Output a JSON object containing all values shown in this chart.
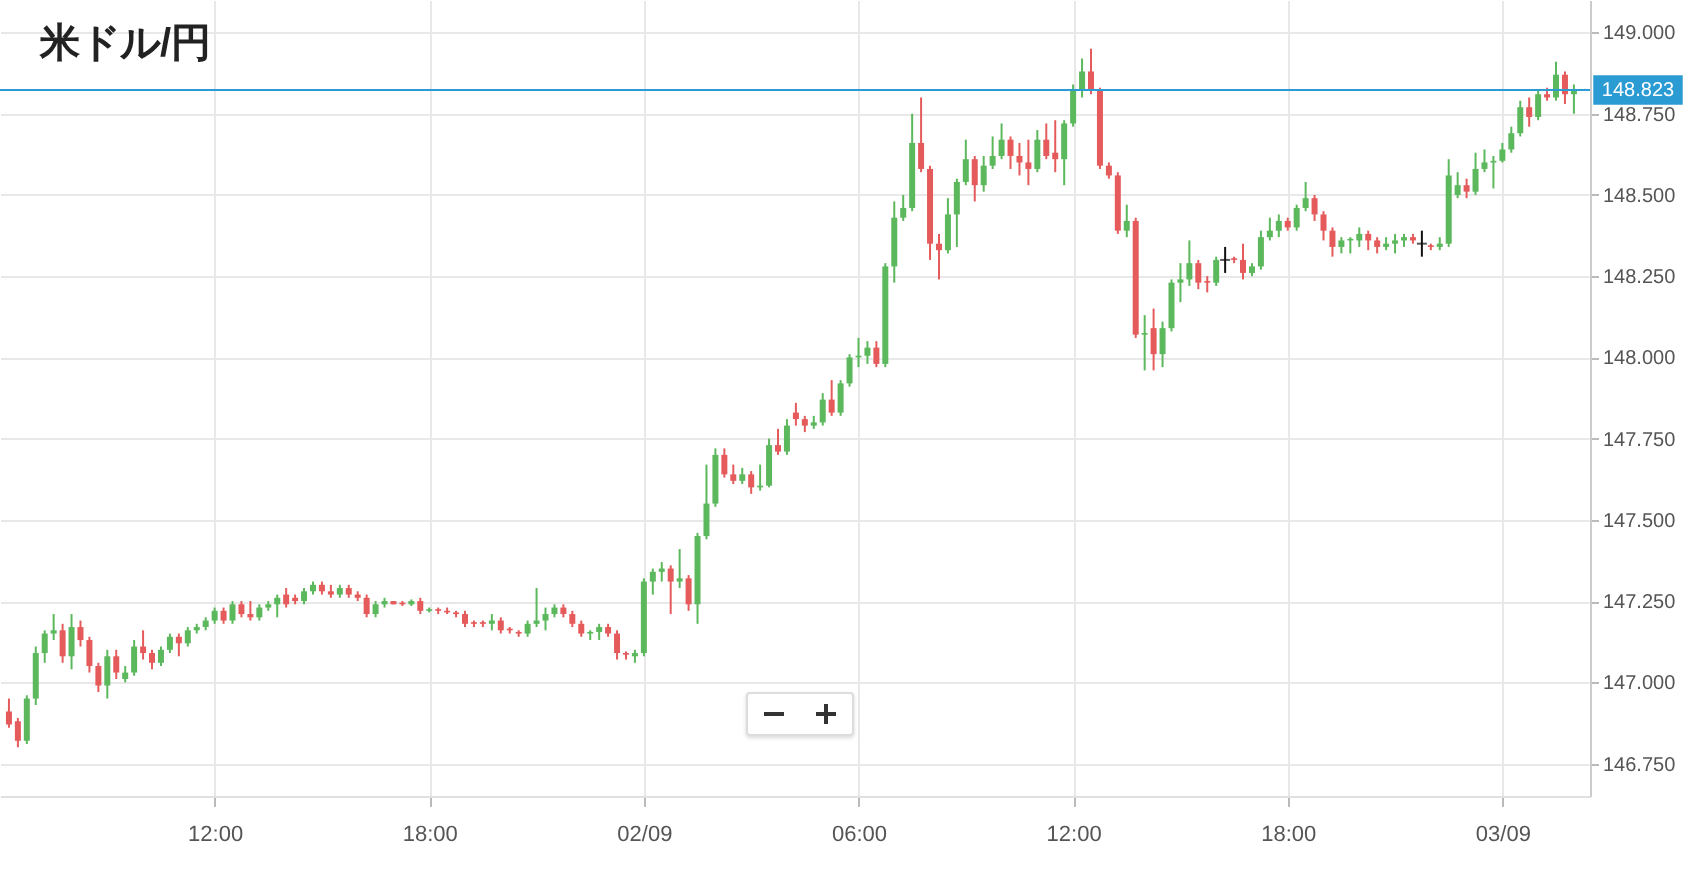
{
  "chart_data": {
    "type": "candlestick",
    "title": "米ドル/円",
    "x": [
      "--09-01T06:15",
      "--09-01T06:30",
      "--09-01T06:45",
      "--09-01T07:00",
      "--09-01T07:15",
      "--09-01T07:30",
      "--09-01T07:45",
      "--09-01T08:00",
      "--09-01T08:15",
      "--09-01T08:30",
      "--09-01T08:45",
      "--09-01T09:00",
      "--09-01T09:15",
      "--09-01T09:30",
      "--09-01T09:45",
      "--09-01T10:00",
      "--09-01T10:15",
      "--09-01T10:30",
      "--09-01T10:45",
      "--09-01T11:00",
      "--09-01T11:15",
      "--09-01T11:30",
      "--09-01T11:45",
      "--09-01T12:00",
      "--09-01T12:15",
      "--09-01T12:30",
      "--09-01T12:45",
      "--09-01T13:00",
      "--09-01T13:15",
      "--09-01T13:30",
      "--09-01T13:45",
      "--09-01T14:00",
      "--09-01T14:15",
      "--09-01T14:30",
      "--09-01T14:45",
      "--09-01T15:00",
      "--09-01T15:15",
      "--09-01T15:30",
      "--09-01T15:45",
      "--09-01T16:00",
      "--09-01T16:15",
      "--09-01T16:30",
      "--09-01T16:45",
      "--09-01T17:00",
      "--09-01T17:15",
      "--09-01T17:30",
      "--09-01T17:45",
      "--09-01T18:00",
      "--09-01T18:15",
      "--09-01T18:30",
      "--09-01T18:45",
      "--09-01T19:00",
      "--09-01T19:15",
      "--09-01T19:30",
      "--09-01T19:45",
      "--09-01T20:00",
      "--09-01T20:15",
      "--09-01T20:30",
      "--09-01T20:45",
      "--09-01T21:00",
      "--09-01T21:15",
      "--09-01T21:30",
      "--09-01T21:45",
      "--09-01T22:00",
      "--09-01T22:15",
      "--09-01T22:30",
      "--09-01T22:45",
      "--09-01T23:00",
      "--09-01T23:15",
      "--09-01T23:30",
      "--09-01T23:45",
      "--09-02T00:00",
      "--09-02T00:15",
      "--09-02T00:30",
      "--09-02T00:45",
      "--09-02T01:00",
      "--09-02T01:15",
      "--09-02T01:30",
      "--09-02T01:45",
      "--09-02T02:00",
      "--09-02T02:15",
      "--09-02T02:30",
      "--09-02T02:45",
      "--09-02T03:00",
      "--09-02T03:15",
      "--09-02T03:30",
      "--09-02T03:45",
      "--09-02T04:00",
      "--09-02T04:15",
      "--09-02T04:30",
      "--09-02T04:45",
      "--09-02T05:00",
      "--09-02T05:15",
      "--09-02T05:30",
      "--09-02T05:45",
      "--09-02T06:00",
      "--09-02T06:15",
      "--09-02T06:30",
      "--09-02T06:45",
      "--09-02T07:00",
      "--09-02T07:15",
      "--09-02T07:30",
      "--09-02T07:45",
      "--09-02T08:00",
      "--09-02T08:15",
      "--09-02T08:30",
      "--09-02T08:45",
      "--09-02T09:00",
      "--09-02T09:15",
      "--09-02T09:30",
      "--09-02T09:45",
      "--09-02T10:00",
      "--09-02T10:15",
      "--09-02T10:30",
      "--09-02T10:45",
      "--09-02T11:00",
      "--09-02T11:15",
      "--09-02T11:30",
      "--09-02T11:45",
      "--09-02T12:00",
      "--09-02T12:15",
      "--09-02T12:30",
      "--09-02T12:45",
      "--09-02T13:00",
      "--09-02T13:15",
      "--09-02T13:30",
      "--09-02T13:45",
      "--09-02T14:00",
      "--09-02T14:15",
      "--09-02T14:30",
      "--09-02T14:45",
      "--09-02T15:00",
      "--09-02T15:15",
      "--09-02T15:30",
      "--09-02T15:45",
      "--09-02T16:00",
      "--09-02T16:15",
      "--09-02T16:30",
      "--09-02T16:45",
      "--09-02T17:00",
      "--09-02T17:15",
      "--09-02T17:30",
      "--09-02T17:45",
      "--09-02T18:00",
      "--09-02T18:15",
      "--09-02T18:30",
      "--09-02T18:45",
      "--09-02T19:00",
      "--09-02T19:15",
      "--09-02T19:30",
      "--09-02T19:45",
      "--09-02T20:00",
      "--09-02T20:15",
      "--09-02T20:30",
      "--09-02T20:45",
      "--09-02T21:00",
      "--09-02T21:15",
      "--09-02T21:30",
      "--09-02T21:45",
      "--09-02T22:00",
      "--09-02T22:15",
      "--09-02T22:30",
      "--09-02T22:45",
      "--09-02T23:00",
      "--09-02T23:15",
      "--09-02T23:30",
      "--09-02T23:45",
      "--09-03T00:00",
      "--09-03T00:15",
      "--09-03T00:30",
      "--09-03T00:45",
      "--09-03T01:00",
      "--09-03T01:15",
      "--09-03T01:30",
      "--09-03T01:45",
      "--09-03T02:00"
    ],
    "ohlc": [
      [
        146.91,
        146.95,
        146.86,
        146.87
      ],
      [
        146.88,
        146.89,
        146.8,
        146.82
      ],
      [
        146.82,
        146.96,
        146.81,
        146.95
      ],
      [
        146.95,
        147.11,
        146.93,
        147.09
      ],
      [
        147.09,
        147.16,
        147.06,
        147.15
      ],
      [
        147.15,
        147.21,
        147.13,
        147.16
      ],
      [
        147.16,
        147.18,
        147.06,
        147.08
      ],
      [
        147.08,
        147.21,
        147.04,
        147.17
      ],
      [
        147.17,
        147.19,
        147.11,
        147.13
      ],
      [
        147.13,
        147.14,
        147.03,
        147.05
      ],
      [
        147.05,
        147.06,
        146.97,
        146.99
      ],
      [
        146.99,
        147.1,
        146.95,
        147.08
      ],
      [
        147.08,
        147.1,
        147.01,
        147.03
      ],
      [
        147.01,
        147.05,
        147.0,
        147.03
      ],
      [
        147.03,
        147.13,
        147.02,
        147.11
      ],
      [
        147.11,
        147.16,
        147.07,
        147.09
      ],
      [
        147.09,
        147.1,
        147.04,
        147.06
      ],
      [
        147.06,
        147.11,
        147.05,
        147.1
      ],
      [
        147.1,
        147.15,
        147.09,
        147.14
      ],
      [
        147.14,
        147.15,
        147.08,
        147.12
      ],
      [
        147.12,
        147.17,
        147.11,
        147.16
      ],
      [
        147.16,
        147.18,
        147.15,
        147.17
      ],
      [
        147.17,
        147.2,
        147.16,
        147.19
      ],
      [
        147.19,
        147.23,
        147.18,
        147.22
      ],
      [
        147.22,
        147.23,
        147.18,
        147.19
      ],
      [
        147.19,
        147.25,
        147.18,
        147.24
      ],
      [
        147.24,
        147.25,
        147.2,
        147.21
      ],
      [
        147.21,
        147.25,
        147.19,
        147.2
      ],
      [
        147.2,
        147.24,
        147.19,
        147.23
      ],
      [
        147.23,
        147.25,
        147.22,
        147.24
      ],
      [
        147.24,
        147.27,
        147.2,
        147.26
      ],
      [
        147.27,
        147.29,
        147.23,
        147.24
      ],
      [
        147.26,
        147.27,
        147.24,
        147.25
      ],
      [
        147.25,
        147.29,
        147.24,
        147.28
      ],
      [
        147.28,
        147.31,
        147.27,
        147.3
      ],
      [
        147.3,
        147.31,
        147.27,
        147.28
      ],
      [
        147.28,
        147.3,
        147.26,
        147.27
      ],
      [
        147.27,
        147.3,
        147.26,
        147.29
      ],
      [
        147.29,
        147.3,
        147.26,
        147.27
      ],
      [
        147.27,
        147.28,
        147.25,
        147.26
      ],
      [
        147.26,
        147.27,
        147.2,
        147.21
      ],
      [
        147.21,
        147.25,
        147.2,
        147.24
      ],
      [
        147.24,
        147.26,
        147.23,
        147.25
      ],
      [
        147.25,
        147.25,
        147.24,
        147.24
      ],
      [
        147.245,
        147.25,
        147.235,
        147.24
      ],
      [
        147.24,
        147.255,
        147.235,
        147.25
      ],
      [
        147.25,
        147.26,
        147.21,
        147.22
      ],
      [
        147.22,
        147.23,
        147.215,
        147.225
      ],
      [
        147.225,
        147.23,
        147.21,
        147.22
      ],
      [
        147.22,
        147.23,
        147.21,
        147.215
      ],
      [
        147.215,
        147.22,
        147.2,
        147.21
      ],
      [
        147.21,
        147.22,
        147.17,
        147.18
      ],
      [
        147.185,
        147.19,
        147.17,
        147.18
      ],
      [
        147.185,
        147.19,
        147.17,
        147.18
      ],
      [
        147.18,
        147.21,
        147.16,
        147.19
      ],
      [
        147.19,
        147.2,
        147.15,
        147.16
      ],
      [
        147.165,
        147.17,
        147.15,
        147.16
      ],
      [
        147.155,
        147.16,
        147.14,
        147.15
      ],
      [
        147.15,
        147.19,
        147.14,
        147.18
      ],
      [
        147.18,
        147.29,
        147.17,
        147.19
      ],
      [
        147.19,
        147.23,
        147.16,
        147.21
      ],
      [
        147.21,
        147.24,
        147.2,
        147.23
      ],
      [
        147.23,
        147.24,
        147.2,
        147.21
      ],
      [
        147.21,
        147.22,
        147.17,
        147.18
      ],
      [
        147.18,
        147.19,
        147.14,
        147.15
      ],
      [
        147.15,
        147.16,
        147.13,
        147.155
      ],
      [
        147.155,
        147.18,
        147.13,
        147.17
      ],
      [
        147.17,
        147.18,
        147.14,
        147.15
      ],
      [
        147.15,
        147.16,
        147.07,
        147.09
      ],
      [
        147.09,
        147.095,
        147.07,
        147.085
      ],
      [
        147.08,
        147.1,
        147.06,
        147.09
      ],
      [
        147.09,
        147.32,
        147.08,
        147.31
      ],
      [
        147.31,
        147.35,
        147.27,
        147.34
      ],
      [
        147.34,
        147.37,
        147.31,
        147.35
      ],
      [
        147.35,
        147.36,
        147.21,
        147.31
      ],
      [
        147.31,
        147.41,
        147.29,
        147.32
      ],
      [
        147.32,
        147.33,
        147.22,
        147.24
      ],
      [
        147.24,
        147.46,
        147.18,
        147.45
      ],
      [
        147.45,
        147.67,
        147.44,
        147.55
      ],
      [
        147.55,
        147.72,
        147.54,
        147.7
      ],
      [
        147.7,
        147.72,
        147.63,
        147.64
      ],
      [
        147.64,
        147.67,
        147.61,
        147.62
      ],
      [
        147.62,
        147.66,
        147.61,
        147.64
      ],
      [
        147.64,
        147.65,
        147.58,
        147.6
      ],
      [
        147.6,
        147.67,
        147.59,
        147.605
      ],
      [
        147.605,
        147.75,
        147.6,
        147.73
      ],
      [
        147.73,
        147.78,
        147.7,
        147.71
      ],
      [
        147.71,
        147.81,
        147.7,
        147.79
      ],
      [
        147.83,
        147.86,
        147.79,
        147.81
      ],
      [
        147.81,
        147.82,
        147.77,
        147.79
      ],
      [
        147.79,
        147.82,
        147.78,
        147.8
      ],
      [
        147.8,
        147.89,
        147.79,
        147.87
      ],
      [
        147.87,
        147.93,
        147.82,
        147.83
      ],
      [
        147.83,
        147.93,
        147.82,
        147.92
      ],
      [
        147.92,
        148.01,
        147.91,
        148.0
      ],
      [
        148.0,
        148.06,
        147.97,
        148.005
      ],
      [
        148.005,
        148.05,
        147.98,
        148.03
      ],
      [
        148.03,
        148.05,
        147.97,
        147.98
      ],
      [
        147.98,
        148.29,
        147.97,
        148.28
      ],
      [
        148.28,
        148.48,
        148.23,
        148.43
      ],
      [
        148.43,
        148.5,
        148.42,
        148.46
      ],
      [
        148.46,
        148.75,
        148.45,
        148.66
      ],
      [
        148.66,
        148.8,
        148.57,
        148.58
      ],
      [
        148.58,
        148.59,
        148.3,
        148.35
      ],
      [
        148.35,
        148.38,
        148.24,
        148.33
      ],
      [
        148.33,
        148.49,
        148.32,
        148.44
      ],
      [
        148.44,
        148.55,
        148.34,
        148.54
      ],
      [
        148.54,
        148.67,
        148.53,
        148.61
      ],
      [
        148.61,
        148.62,
        148.48,
        148.53
      ],
      [
        148.53,
        148.62,
        148.51,
        148.59
      ],
      [
        148.59,
        148.68,
        148.58,
        148.62
      ],
      [
        148.62,
        148.72,
        148.61,
        148.67
      ],
      [
        148.67,
        148.68,
        148.58,
        148.62
      ],
      [
        148.62,
        148.66,
        148.56,
        148.6
      ],
      [
        148.6,
        148.67,
        148.53,
        148.58
      ],
      [
        148.58,
        148.7,
        148.57,
        148.67
      ],
      [
        148.67,
        148.72,
        148.61,
        148.62
      ],
      [
        148.63,
        148.73,
        148.57,
        148.61
      ],
      [
        148.61,
        148.73,
        148.53,
        148.72
      ],
      [
        148.72,
        148.84,
        148.71,
        148.82
      ],
      [
        148.82,
        148.92,
        148.8,
        148.88
      ],
      [
        148.88,
        148.95,
        148.81,
        148.82
      ],
      [
        148.82,
        148.83,
        148.58,
        148.59
      ],
      [
        148.59,
        148.6,
        148.55,
        148.56
      ],
      [
        148.56,
        148.57,
        148.38,
        148.39
      ],
      [
        148.39,
        148.47,
        148.37,
        148.42
      ],
      [
        148.42,
        148.43,
        148.06,
        148.07
      ],
      [
        148.07,
        148.13,
        147.96,
        148.075
      ],
      [
        148.09,
        148.15,
        147.96,
        148.01
      ],
      [
        148.01,
        148.11,
        147.97,
        148.09
      ],
      [
        148.09,
        148.24,
        148.08,
        148.23
      ],
      [
        148.23,
        148.29,
        148.17,
        148.24
      ],
      [
        148.24,
        148.36,
        148.22,
        148.29
      ],
      [
        148.29,
        148.3,
        148.21,
        148.23
      ],
      [
        148.235,
        148.25,
        148.2,
        148.23
      ],
      [
        148.23,
        148.31,
        148.22,
        148.3
      ],
      [
        148.3,
        148.34,
        148.26,
        148.3
      ],
      [
        148.305,
        148.31,
        148.29,
        148.3
      ],
      [
        148.3,
        148.35,
        148.24,
        148.26
      ],
      [
        148.26,
        148.29,
        148.25,
        148.28
      ],
      [
        148.28,
        148.39,
        148.27,
        148.37
      ],
      [
        148.37,
        148.43,
        148.36,
        148.39
      ],
      [
        148.39,
        148.44,
        148.37,
        148.42
      ],
      [
        148.42,
        148.43,
        148.39,
        148.4
      ],
      [
        148.4,
        148.47,
        148.39,
        148.46
      ],
      [
        148.46,
        148.54,
        148.45,
        148.49
      ],
      [
        148.49,
        148.5,
        148.42,
        148.44
      ],
      [
        148.44,
        148.45,
        148.36,
        148.39
      ],
      [
        148.39,
        148.4,
        148.31,
        148.34
      ],
      [
        148.34,
        148.37,
        148.32,
        148.36
      ],
      [
        148.36,
        148.37,
        148.32,
        148.365
      ],
      [
        148.36,
        148.4,
        148.34,
        148.38
      ],
      [
        148.38,
        148.39,
        148.33,
        148.36
      ],
      [
        148.36,
        148.37,
        148.32,
        148.34
      ],
      [
        148.34,
        148.37,
        148.33,
        148.35
      ],
      [
        148.35,
        148.38,
        148.32,
        148.36
      ],
      [
        148.36,
        148.38,
        148.34,
        148.37
      ],
      [
        148.37,
        148.38,
        148.35,
        148.36
      ],
      [
        148.35,
        148.39,
        148.31,
        148.35
      ],
      [
        148.345,
        148.35,
        148.33,
        148.34
      ],
      [
        148.34,
        148.37,
        148.33,
        148.35
      ],
      [
        148.35,
        148.61,
        148.34,
        148.56
      ],
      [
        148.5,
        148.57,
        148.49,
        148.53
      ],
      [
        148.53,
        148.55,
        148.49,
        148.51
      ],
      [
        148.51,
        148.63,
        148.5,
        148.58
      ],
      [
        148.58,
        148.64,
        148.57,
        148.6
      ],
      [
        148.6,
        148.62,
        148.52,
        148.605
      ],
      [
        148.605,
        148.66,
        148.6,
        148.64
      ],
      [
        148.64,
        148.71,
        148.63,
        148.69
      ],
      [
        148.69,
        148.79,
        148.68,
        148.77
      ],
      [
        148.77,
        148.8,
        148.71,
        148.74
      ],
      [
        148.74,
        148.82,
        148.73,
        148.81
      ],
      [
        148.81,
        148.83,
        148.79,
        148.8
      ],
      [
        148.8,
        148.91,
        148.79,
        148.87
      ],
      [
        148.87,
        148.88,
        148.78,
        148.81
      ],
      [
        148.81,
        148.84,
        148.75,
        148.82
      ]
    ],
    "colors": [
      "#e55b5b",
      "#e55b5b",
      "#5cb85c",
      "#5cb85c",
      "#5cb85c",
      "#5cb85c",
      "#e55b5b",
      "#5cb85c",
      "#e55b5b",
      "#e55b5b",
      "#e55b5b",
      "#5cb85c",
      "#e55b5b",
      "#5cb85c",
      "#5cb85c",
      "#e55b5b",
      "#e55b5b",
      "#5cb85c",
      "#5cb85c",
      "#e55b5b",
      "#5cb85c",
      "#5cb85c",
      "#5cb85c",
      "#5cb85c",
      "#e55b5b",
      "#5cb85c",
      "#e55b5b",
      "#e55b5b",
      "#5cb85c",
      "#5cb85c",
      "#5cb85c",
      "#e55b5b",
      "#e55b5b",
      "#5cb85c",
      "#5cb85c",
      "#e55b5b",
      "#e55b5b",
      "#5cb85c",
      "#e55b5b",
      "#e55b5b",
      "#e55b5b",
      "#5cb85c",
      "#5cb85c",
      "#e55b5b",
      "#e55b5b",
      "#5cb85c",
      "#e55b5b",
      "#5cb85c",
      "#e55b5b",
      "#e55b5b",
      "#e55b5b",
      "#e55b5b",
      "#e55b5b",
      "#e55b5b",
      "#5cb85c",
      "#e55b5b",
      "#e55b5b",
      "#e55b5b",
      "#5cb85c",
      "#5cb85c",
      "#5cb85c",
      "#5cb85c",
      "#e55b5b",
      "#e55b5b",
      "#e55b5b",
      "#5cb85c",
      "#5cb85c",
      "#e55b5b",
      "#e55b5b",
      "#e55b5b",
      "#5cb85c",
      "#5cb85c",
      "#5cb85c",
      "#5cb85c",
      "#e55b5b",
      "#5cb85c",
      "#e55b5b",
      "#5cb85c",
      "#5cb85c",
      "#5cb85c",
      "#e55b5b",
      "#e55b5b",
      "#5cb85c",
      "#e55b5b",
      "#5cb85c",
      "#5cb85c",
      "#e55b5b",
      "#5cb85c",
      "#e55b5b",
      "#e55b5b",
      "#5cb85c",
      "#5cb85c",
      "#e55b5b",
      "#5cb85c",
      "#5cb85c",
      "#5cb85c",
      "#5cb85c",
      "#e55b5b",
      "#5cb85c",
      "#5cb85c",
      "#5cb85c",
      "#5cb85c",
      "#e55b5b",
      "#e55b5b",
      "#e55b5b",
      "#5cb85c",
      "#5cb85c",
      "#5cb85c",
      "#e55b5b",
      "#5cb85c",
      "#5cb85c",
      "#5cb85c",
      "#e55b5b",
      "#e55b5b",
      "#e55b5b",
      "#5cb85c",
      "#e55b5b",
      "#e55b5b",
      "#5cb85c",
      "#5cb85c",
      "#5cb85c",
      "#e55b5b",
      "#e55b5b",
      "#e55b5b",
      "#e55b5b",
      "#5cb85c",
      "#e55b5b",
      "#5cb85c",
      "#e55b5b",
      "#5cb85c",
      "#5cb85c",
      "#5cb85c",
      "#5cb85c",
      "#e55b5b",
      "#e55b5b",
      "#5cb85c",
      "#111111",
      "#e55b5b",
      "#e55b5b",
      "#5cb85c",
      "#5cb85c",
      "#5cb85c",
      "#5cb85c",
      "#e55b5b",
      "#5cb85c",
      "#5cb85c",
      "#e55b5b",
      "#e55b5b",
      "#e55b5b",
      "#5cb85c",
      "#5cb85c",
      "#5cb85c",
      "#e55b5b",
      "#e55b5b",
      "#5cb85c",
      "#5cb85c",
      "#5cb85c",
      "#e55b5b",
      "#111111",
      "#e55b5b",
      "#5cb85c",
      "#5cb85c",
      "#5cb85c",
      "#e55b5b",
      "#5cb85c",
      "#5cb85c",
      "#5cb85c",
      "#5cb85c",
      "#5cb85c",
      "#5cb85c",
      "#e55b5b",
      "#5cb85c",
      "#e55b5b",
      "#5cb85c",
      "#e55b5b",
      "#5cb85c"
    ],
    "xlim": [
      "--09-01T06:00",
      "--09-03T02:27"
    ],
    "xticks": [
      {
        "value": "--09-01T12:00",
        "label": "12:00"
      },
      {
        "value": "--09-01T18:00",
        "label": "18:00"
      },
      {
        "value": "--09-02T00:00",
        "label": "02/09"
      },
      {
        "value": "--09-02T06:00",
        "label": "06:00"
      },
      {
        "value": "--09-02T12:00",
        "label": "12:00"
      },
      {
        "value": "--09-02T18:00",
        "label": "18:00"
      },
      {
        "value": "--09-03T00:00",
        "label": "03/09"
      }
    ],
    "ylim": [
      146.65,
      149.1
    ],
    "yticks": [
      {
        "value": 146.75,
        "label": "146.750"
      },
      {
        "value": 147,
        "label": "147.000"
      },
      {
        "value": 147.25,
        "label": "147.250"
      },
      {
        "value": 147.5,
        "label": "147.500"
      },
      {
        "value": 147.75,
        "label": "147.750"
      },
      {
        "value": 148,
        "label": "148.000"
      },
      {
        "value": 148.25,
        "label": "148.250"
      },
      {
        "value": 148.5,
        "label": "148.500"
      },
      {
        "value": 148.75,
        "label": "148.750"
      },
      {
        "value": 149,
        "label": "149.000"
      }
    ],
    "grid": true,
    "ref_lines": [
      {
        "axis": "y",
        "value": 148.823,
        "label": "148.823",
        "color": "#2b9bd3"
      }
    ]
  }
}
